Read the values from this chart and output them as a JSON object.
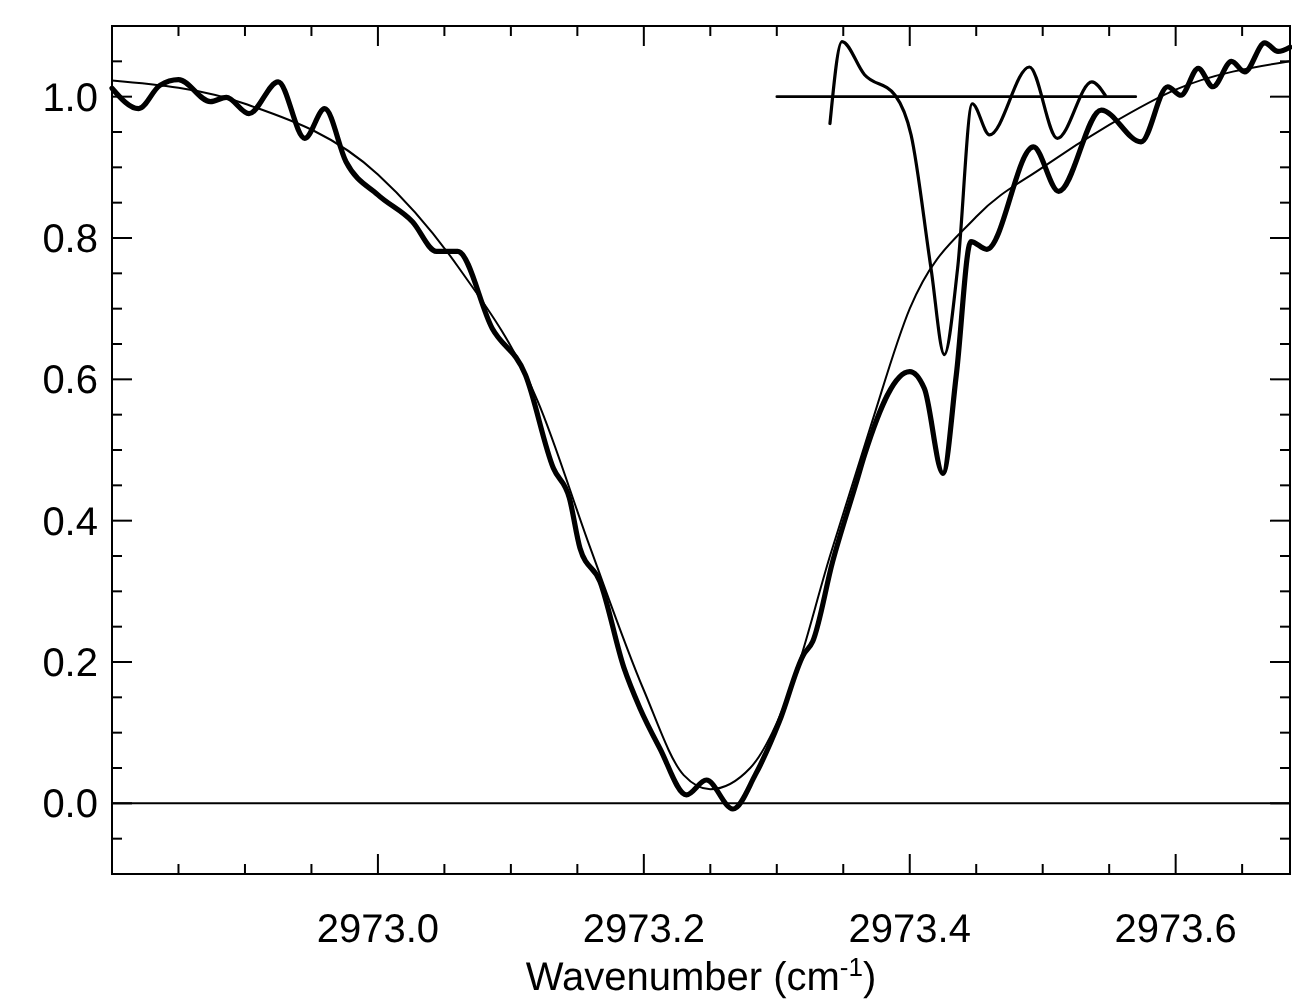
{
  "chart_data": {
    "type": "line",
    "xlabel": "Wavenumber (cm$^{-1}$)",
    "xlim": [
      2972.8,
      2973.686
    ],
    "ylim": [
      -0.1,
      1.1
    ],
    "xticks": [
      {
        "value": 2972.85,
        "label": null
      },
      {
        "value": 2972.9,
        "label": null
      },
      {
        "value": 2972.95,
        "label": null
      },
      {
        "value": 2973.0,
        "label": "2973.0"
      },
      {
        "value": 2973.05,
        "label": null
      },
      {
        "value": 2973.1,
        "label": null
      },
      {
        "value": 2973.15,
        "label": null
      },
      {
        "value": 2973.2,
        "label": "2973.2"
      },
      {
        "value": 2973.25,
        "label": null
      },
      {
        "value": 2973.3,
        "label": null
      },
      {
        "value": 2973.35,
        "label": null
      },
      {
        "value": 2973.4,
        "label": "2973.4"
      },
      {
        "value": 2973.45,
        "label": null
      },
      {
        "value": 2973.5,
        "label": null
      },
      {
        "value": 2973.55,
        "label": null
      },
      {
        "value": 2973.6,
        "label": "2973.6"
      },
      {
        "value": 2973.65,
        "label": null
      }
    ],
    "yticks": [
      {
        "value": -0.05,
        "label": null
      },
      {
        "value": 0,
        "label": "0.0"
      },
      {
        "value": 0.05,
        "label": null
      },
      {
        "value": 0.1,
        "label": null
      },
      {
        "value": 0.15,
        "label": null
      },
      {
        "value": 0.2,
        "label": "0.2"
      },
      {
        "value": 0.25,
        "label": null
      },
      {
        "value": 0.3,
        "label": null
      },
      {
        "value": 0.35,
        "label": null
      },
      {
        "value": 0.4,
        "label": "0.4"
      },
      {
        "value": 0.45,
        "label": null
      },
      {
        "value": 0.5,
        "label": null
      },
      {
        "value": 0.55,
        "label": null
      },
      {
        "value": 0.6,
        "label": "0.6"
      },
      {
        "value": 0.65,
        "label": null
      },
      {
        "value": 0.7,
        "label": null
      },
      {
        "value": 0.75,
        "label": null
      },
      {
        "value": 0.8,
        "label": "0.8"
      },
      {
        "value": 0.85,
        "label": null
      },
      {
        "value": 0.9,
        "label": null
      },
      {
        "value": 0.95,
        "label": null
      },
      {
        "value": 1.0,
        "label": "1.0"
      },
      {
        "value": 1.05,
        "label": null
      }
    ],
    "grid": false,
    "marker": "none",
    "line_style": "solid",
    "ref_lines": [
      {
        "axis": "y",
        "value": 0,
        "color": "#000000"
      }
    ],
    "series": [
      {
        "color": "#000000",
        "x": [
          2972.8,
          2972.82,
          2972.836,
          2972.85,
          2972.874,
          2972.886,
          2972.903,
          2972.925,
          2972.945,
          2972.96,
          2972.976,
          2973.0,
          2973.026,
          2973.044,
          2973.06,
          2973.086,
          2973.111,
          2973.132,
          2973.144,
          2973.152,
          2973.167,
          2973.185,
          2973.197,
          2973.212,
          2973.232,
          2973.247,
          2973.267,
          2973.284,
          2973.302,
          2973.32,
          2973.327,
          2973.342,
          2973.36,
          2973.366,
          2973.4,
          2973.411,
          2973.425,
          2973.435,
          2973.446,
          2973.458,
          2973.493,
          2973.512,
          2973.544,
          2973.574,
          2973.594,
          2973.604,
          2973.617,
          2973.628,
          2973.642,
          2973.652,
          2973.667,
          2973.677,
          2973.686
        ],
        "values": [
          1.012,
          0.983,
          1.016,
          1.024,
          0.993,
          0.999,
          0.976,
          1.021,
          0.941,
          0.983,
          0.908,
          0.861,
          0.823,
          0.781,
          0.781,
          0.672,
          0.606,
          0.474,
          0.432,
          0.361,
          0.314,
          0.192,
          0.135,
          0.078,
          0.012,
          0.033,
          -0.008,
          0.041,
          0.116,
          0.21,
          0.229,
          0.342,
          0.455,
          0.493,
          0.611,
          0.587,
          0.467,
          0.606,
          0.795,
          0.784,
          0.929,
          0.866,
          0.981,
          0.936,
          1.014,
          1.002,
          1.04,
          1.014,
          1.05,
          1.035,
          1.076,
          1.064,
          1.07
        ]
      },
      {
        "color": "#000000",
        "x": [
          2972.8,
          2972.9,
          2973.0,
          2973.06,
          2973.12,
          2973.16,
          2973.2,
          2973.23,
          2973.25,
          2973.28,
          2973.31,
          2973.34,
          2973.37,
          2973.4,
          2973.45,
          2973.5,
          2973.55,
          2973.6,
          2973.686
        ],
        "values": [
          1.023,
          0.99,
          0.89,
          0.76,
          0.57,
          0.36,
          0.16,
          0.04,
          0.02,
          0.05,
          0.16,
          0.35,
          0.53,
          0.7,
          0.83,
          0.9,
          0.96,
          1.01,
          1.05
        ]
      },
      {
        "color": "#000000",
        "x": [
          2973.34,
          2973.349,
          2973.366,
          2973.389,
          2973.401,
          2973.416,
          2973.426,
          2973.436,
          2973.447,
          2973.46,
          2973.49,
          2973.511,
          2973.537,
          2973.547
        ],
        "values": [
          0.962,
          1.078,
          1.031,
          1.002,
          0.946,
          0.757,
          0.635,
          0.757,
          0.99,
          0.946,
          1.042,
          0.941,
          1.021,
          1.002
        ]
      },
      {
        "color": "#000000",
        "x": [
          2973.3,
          2973.57
        ],
        "values": [
          1.0,
          1.0
        ]
      }
    ]
  }
}
